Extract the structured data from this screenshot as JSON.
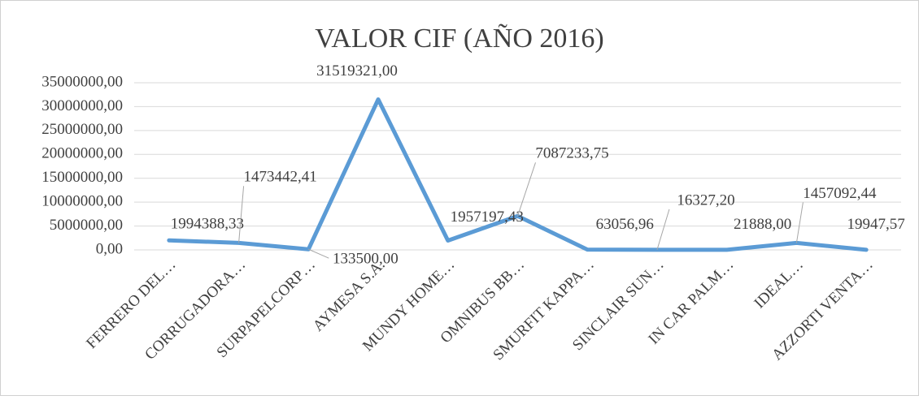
{
  "chart_data": {
    "type": "line",
    "title": "VALOR CIF (AÑO 2016)",
    "categories": [
      "FERRERO DEL…",
      "CORRUGADORA…",
      "SURPAPELCORP…",
      "AYMESA S.A.",
      "MUNDY HOME…",
      "OMNIBUS BB…",
      "SMURFIT KAPPA…",
      "SINCLAIR SUN…",
      "IN CAR PALM…",
      "IDEAL…",
      "AZZORTI VENTA…"
    ],
    "series": [
      {
        "name": "VALOR CIF",
        "color": "#5b9bd5",
        "values": [
          1994388.33,
          1473442.41,
          133500.0,
          31519321.0,
          1957197.43,
          7087233.75,
          63056.96,
          16327.2,
          21888.0,
          1457092.44,
          19947.57
        ],
        "value_labels": [
          "1994388,33",
          "1473442,41",
          "133500,00",
          "31519321,00",
          "1957197,43",
          "7087233,75",
          "63056,96",
          "16327,20",
          "21888,00",
          "1457092,44",
          "19947,57"
        ]
      }
    ],
    "ylim": [
      0,
      35000000
    ],
    "yticks": [
      {
        "value": 0,
        "label": "0,00"
      },
      {
        "value": 5000000,
        "label": "5000000,00"
      },
      {
        "value": 10000000,
        "label": "10000000,00"
      },
      {
        "value": 15000000,
        "label": "15000000,00"
      },
      {
        "value": 20000000,
        "label": "20000000,00"
      },
      {
        "value": 25000000,
        "label": "25000000,00"
      },
      {
        "value": 30000000,
        "label": "30000000,00"
      },
      {
        "value": 35000000,
        "label": "35000000,00"
      }
    ],
    "grid": true
  }
}
